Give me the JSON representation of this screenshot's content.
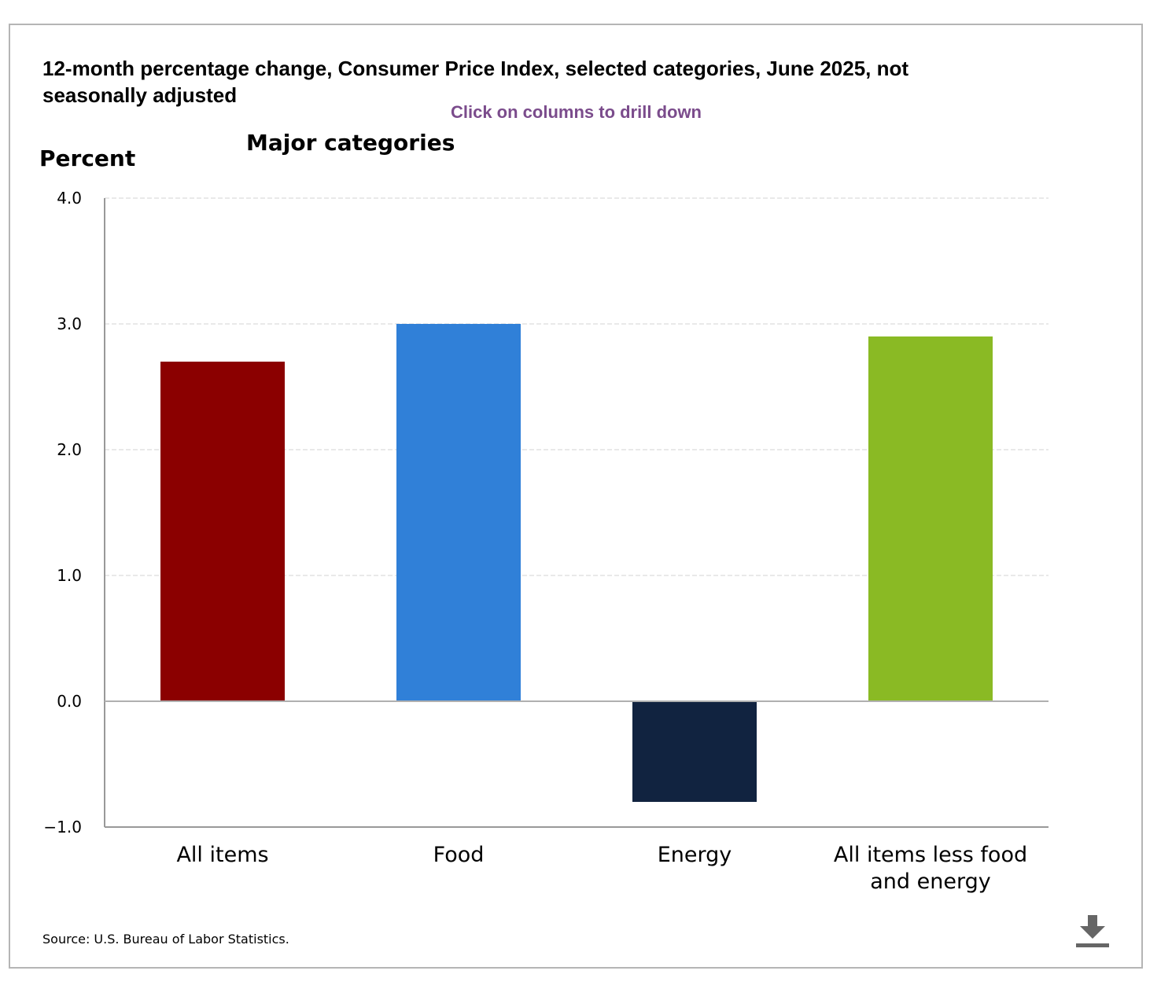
{
  "chart_data": {
    "type": "bar",
    "title": "12-month percentage change, Consumer Price Index, selected categories, June 2025, not seasonally adjusted",
    "subtitle": "Major categories",
    "drilldown_hint": "Click on columns to drill down",
    "ylabel": "Percent",
    "xlabel": "",
    "ylim": [
      -1.0,
      4.0
    ],
    "yticks": [
      4.0,
      3.0,
      2.0,
      1.0,
      0.0,
      -1.0
    ],
    "ytick_labels": [
      "4.0",
      "3.0",
      "2.0",
      "1.0",
      "0.0",
      "−1.0"
    ],
    "grid": true,
    "categories": [
      [
        "All items"
      ],
      [
        "Food"
      ],
      [
        "Energy"
      ],
      [
        "All items less food",
        "and energy"
      ]
    ],
    "values": [
      2.7,
      3.0,
      -0.8,
      2.9
    ],
    "colors": [
      "#8b0000",
      "#3080d8",
      "#112340",
      "#8aba24"
    ],
    "source": "Source: U.S. Bureau of Labor Statistics."
  },
  "icons": {
    "download": "download-icon"
  }
}
